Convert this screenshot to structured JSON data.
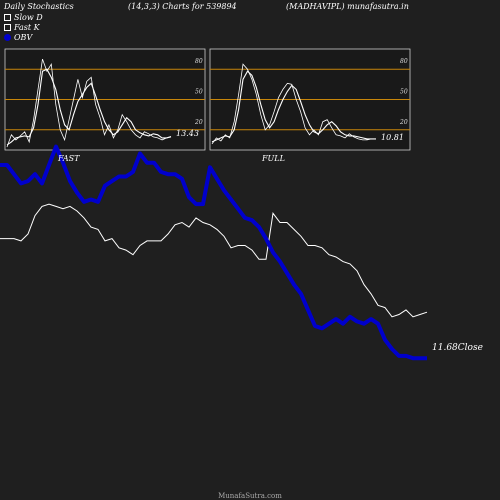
{
  "header": {
    "title": "Daily Stochastics",
    "params": "(14,3,3) Charts for 539894",
    "symbol": "(MADHAVIPL) munafasutra.in",
    "watermark": "MunafaSutra.com"
  },
  "legend": [
    {
      "label": "Slow  D",
      "swatch": "hollow-square"
    },
    {
      "label": "Fast K",
      "swatch": "hollow-square"
    },
    {
      "label": "OBV",
      "swatch": "filled-circle"
    }
  ],
  "colors": {
    "background": "#1f1f1f",
    "obv": "#0000cc",
    "lines": "#ffffff",
    "gridlines": "#c8860a"
  },
  "panels": {
    "fast": {
      "label": "FAST",
      "last_value": "13.43"
    },
    "full": {
      "label": "FULL",
      "last_value": "10.81"
    }
  },
  "main": {
    "close_label": "11.68Close"
  },
  "chart_data": [
    {
      "type": "line",
      "title": "FAST",
      "ylim": [
        0,
        100
      ],
      "gridlines": [
        20,
        50,
        80
      ],
      "tick_labels": [
        "80",
        "50",
        "20"
      ],
      "series": [
        {
          "name": "Slow  D",
          "values": [
            5,
            8,
            12,
            13,
            14,
            13,
            22,
            45,
            78,
            80,
            72,
            60,
            40,
            25,
            20,
            35,
            48,
            55,
            62,
            66,
            54,
            40,
            28,
            20,
            15,
            18,
            25,
            32,
            28,
            20,
            17,
            15,
            14,
            16,
            15,
            12,
            12,
            13
          ]
        },
        {
          "name": "Fast K",
          "values": [
            3,
            15,
            10,
            14,
            18,
            8,
            30,
            60,
            90,
            78,
            85,
            45,
            20,
            10,
            30,
            50,
            70,
            52,
            68,
            72,
            45,
            32,
            15,
            25,
            12,
            20,
            35,
            28,
            20,
            15,
            12,
            18,
            16,
            13,
            12,
            10,
            12,
            13.43
          ]
        }
      ]
    },
    {
      "type": "line",
      "title": "FULL",
      "ylim": [
        0,
        100
      ],
      "gridlines": [
        20,
        50,
        80
      ],
      "tick_labels": [
        "80",
        "50",
        "20"
      ],
      "series": [
        {
          "name": "Slow  D",
          "values": [
            8,
            10,
            12,
            14,
            13,
            20,
            40,
            70,
            78,
            74,
            62,
            45,
            30,
            22,
            28,
            40,
            50,
            58,
            64,
            60,
            48,
            35,
            25,
            18,
            16,
            20,
            25,
            28,
            24,
            18,
            15,
            14,
            14,
            13,
            12,
            11,
            11,
            11
          ]
        },
        {
          "name": "Fast K",
          "values": [
            6,
            12,
            9,
            15,
            12,
            28,
            55,
            85,
            80,
            70,
            55,
            35,
            20,
            25,
            38,
            52,
            60,
            66,
            65,
            50,
            38,
            22,
            15,
            20,
            15,
            28,
            30,
            22,
            15,
            14,
            12,
            16,
            13,
            11,
            10,
            10,
            11,
            10.81
          ]
        }
      ]
    },
    {
      "type": "line",
      "title": "",
      "x": [
        0,
        1,
        2,
        3,
        4,
        5,
        6,
        7,
        8,
        9,
        10,
        11,
        12,
        13,
        14,
        15,
        16,
        17,
        18,
        19,
        20,
        21,
        22,
        23,
        24,
        25,
        26,
        27,
        28,
        29,
        30,
        31,
        32,
        33,
        34,
        35,
        36,
        37,
        38,
        39,
        40,
        41,
        42,
        43,
        44,
        45,
        46,
        47,
        48,
        49,
        50,
        51,
        52,
        53,
        54,
        55,
        56,
        57,
        58,
        59,
        60,
        61
      ],
      "ylim": [
        0,
        100
      ],
      "series": [
        {
          "name": "Close",
          "values": [
            68,
            68,
            68,
            67,
            70,
            78,
            82,
            83,
            82,
            81,
            82,
            80,
            77,
            73,
            72,
            67,
            68,
            64,
            63,
            61,
            65,
            67,
            67,
            67,
            70,
            74,
            75,
            73,
            77,
            75,
            74,
            72,
            69,
            64,
            65,
            65,
            63,
            59,
            59,
            79,
            75,
            75,
            72,
            69,
            65,
            65,
            64,
            61,
            60,
            58,
            57,
            54,
            48,
            44,
            39,
            38,
            34,
            35,
            37,
            34,
            35,
            36
          ]
        },
        {
          "name": "OBV",
          "values": [
            100,
            100,
            96,
            92,
            93,
            96,
            92,
            100,
            108,
            101,
            93,
            88,
            84,
            85,
            84,
            91,
            93,
            95,
            95,
            97,
            105,
            101,
            101,
            97,
            96,
            96,
            94,
            86,
            83,
            83,
            99,
            94,
            89,
            85,
            81,
            77,
            76,
            73,
            68,
            62,
            58,
            53,
            48,
            44,
            37,
            30,
            29,
            31,
            33,
            31,
            34,
            32,
            31,
            33,
            31,
            24,
            20,
            17,
            17,
            16,
            16,
            16
          ]
        }
      ]
    }
  ]
}
